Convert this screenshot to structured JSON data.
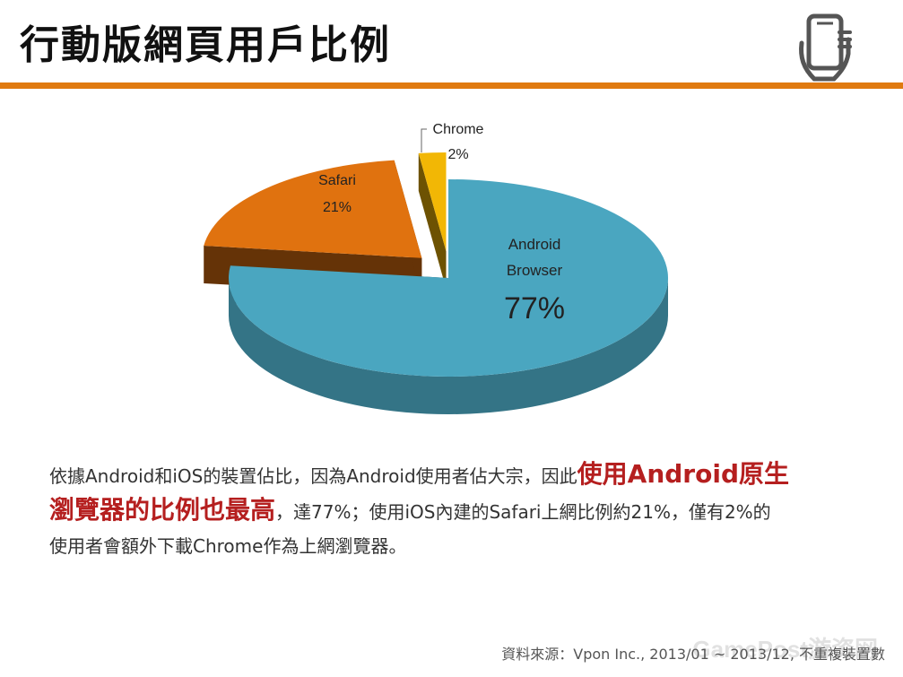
{
  "slide": {
    "title": "行動版網頁用戶比例",
    "accent_color": "#e07a10",
    "icon": "phone-in-hand-icon"
  },
  "chart_data": {
    "type": "pie",
    "style": "3d-exploded",
    "slices": [
      {
        "label": "Android Browser",
        "label_lines": [
          "Android",
          "Browser"
        ],
        "value": 77,
        "value_label": "77%",
        "color": "#4aa6c0"
      },
      {
        "label": "Safari",
        "label_lines": [
          "Safari"
        ],
        "value": 21,
        "value_label": "21%",
        "color": "#e0720f"
      },
      {
        "label": "Chrome",
        "label_lines": [
          "Chrome"
        ],
        "value": 2,
        "value_label": "2%",
        "color": "#f2b705"
      }
    ]
  },
  "body": {
    "p1": "依據Android和iOS的裝置佔比，因為Android使用者佔大宗，因此",
    "hl1": "使用Android原生",
    "hl2": "瀏覽器的比例也最高",
    "p2": "，達77%；使用iOS內建的Safari上網比例約21%，僅有2%的",
    "p3": "使用者會額外下載Chrome作為上網瀏覽器。"
  },
  "footer": {
    "source": "資料來源：Vpon Inc., 2013/01 ~ 2013/12, 不重複裝置數",
    "watermark": "GamePost游资网"
  }
}
